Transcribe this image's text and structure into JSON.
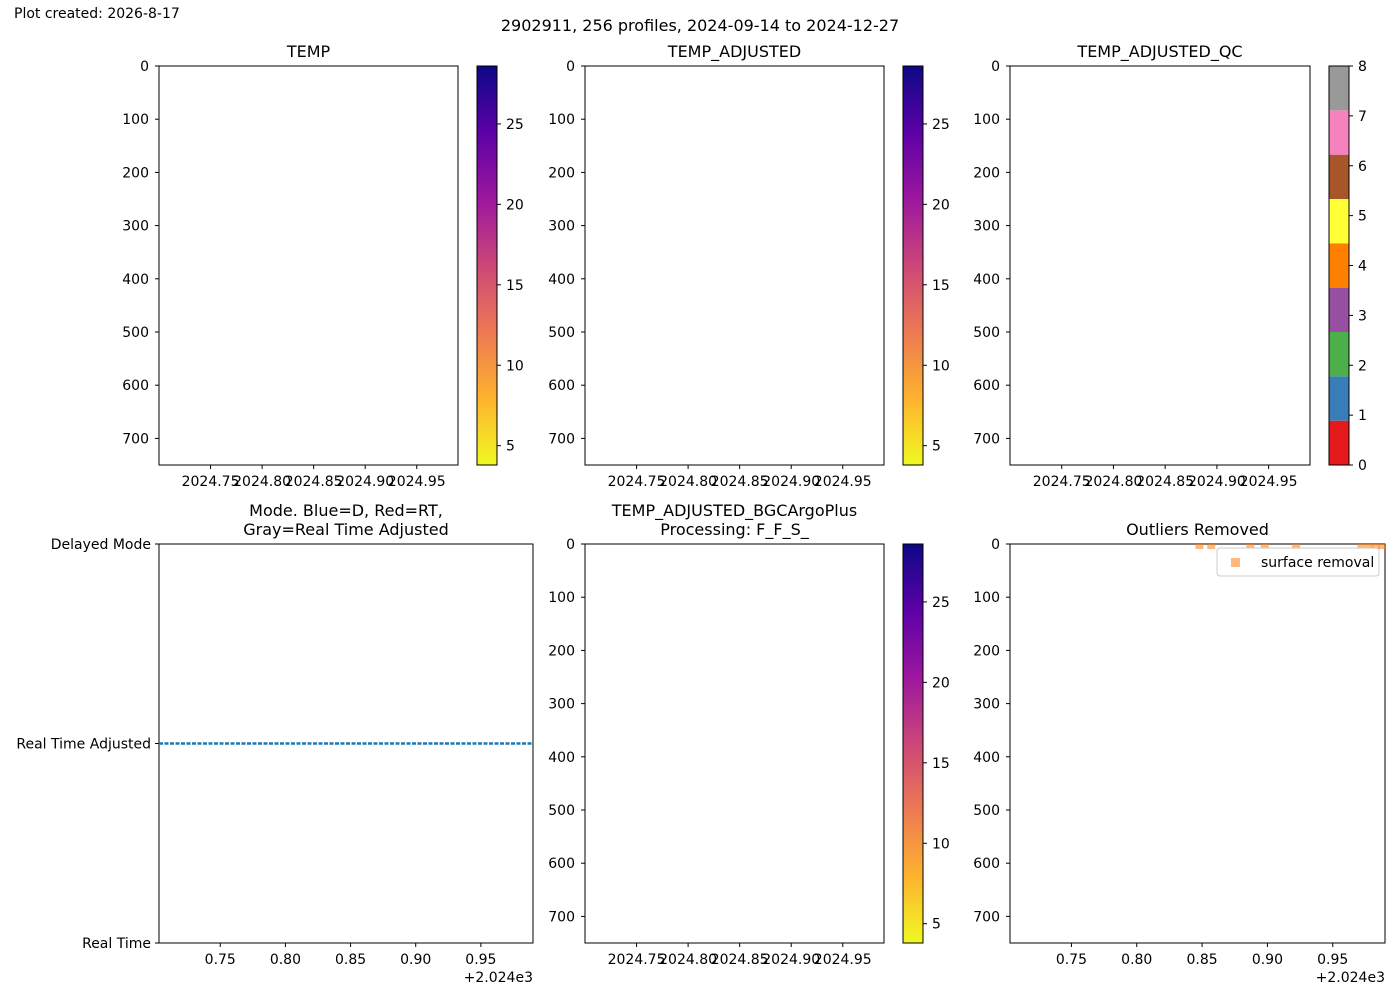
{
  "created_text": "Plot created: 2026-8-17",
  "suptitle": "2902911, 256 profiles, 2024-09-14 to 2024-12-27",
  "colormaps": {
    "temp_stops": [
      "#f0f921",
      "#fdb32f",
      "#ed7953",
      "#cc4778",
      "#9c179e",
      "#5c01a6",
      "#0d0887"
    ],
    "temp_ticks": [
      5,
      10,
      15,
      20,
      25
    ],
    "temp_range": [
      3.8,
      28.6
    ],
    "qc_colors": [
      "#e41a1c",
      "#377eb8",
      "#4daf4a",
      "#984ea3",
      "#ff7f00",
      "#ffff33",
      "#a65628",
      "#f781bf",
      "#999999"
    ],
    "qc_ticks": [
      0,
      1,
      2,
      3,
      4,
      5,
      6,
      7,
      8
    ]
  },
  "chart_data": [
    {
      "id": "temp",
      "type": "heatmap",
      "title": "TEMP",
      "xlim": [
        2024.7,
        2024.99
      ],
      "ylim": [
        750,
        0
      ],
      "xticks": [
        "2024.75",
        "2024.80",
        "2024.85",
        "2024.90",
        "2024.95"
      ],
      "yticks": [
        "0",
        "100",
        "200",
        "300",
        "400",
        "500",
        "600",
        "700"
      ],
      "colorbar": "temp"
    },
    {
      "id": "temp_adjusted",
      "type": "heatmap",
      "title": "TEMP_ADJUSTED",
      "xlim": [
        2024.7,
        2024.99
      ],
      "ylim": [
        750,
        0
      ],
      "xticks": [
        "2024.75",
        "2024.80",
        "2024.85",
        "2024.90",
        "2024.95"
      ],
      "yticks": [
        "0",
        "100",
        "200",
        "300",
        "400",
        "500",
        "600",
        "700"
      ],
      "colorbar": "temp"
    },
    {
      "id": "temp_adjusted_qc",
      "type": "heatmap",
      "title": "TEMP_ADJUSTED_QC",
      "xlim": [
        2024.7,
        2024.99
      ],
      "ylim": [
        750,
        0
      ],
      "xticks": [
        "2024.75",
        "2024.80",
        "2024.85",
        "2024.90",
        "2024.95"
      ],
      "yticks": [
        "0",
        "100",
        "200",
        "300",
        "400",
        "500",
        "600",
        "700"
      ],
      "colorbar": "qc"
    },
    {
      "id": "mode",
      "type": "line",
      "title": "Mode. Blue=D, Red=RT,\nGray=Real Time Adjusted",
      "xlim": [
        0.703,
        0.99
      ],
      "xticks": [
        "0.75",
        "0.80",
        "0.85",
        "0.90",
        "0.95"
      ],
      "x_offset_label": "+2.024e3",
      "ylim": [
        0,
        2
      ],
      "yticks": [
        "Real Time",
        "Real Time Adjusted",
        "Delayed Mode"
      ],
      "series": [
        {
          "color": "#1f77b4",
          "style": "dashed",
          "x": [
            0.703,
            0.99
          ],
          "y": [
            1,
            1
          ]
        }
      ]
    },
    {
      "id": "temp_adjusted_bgc",
      "type": "heatmap",
      "title": "TEMP_ADJUSTED_BGCArgoPlus\nProcessing: F_F_S_",
      "xlim": [
        2024.7,
        2024.99
      ],
      "ylim": [
        750,
        0
      ],
      "xticks": [
        "2024.75",
        "2024.80",
        "2024.85",
        "2024.90",
        "2024.95"
      ],
      "yticks": [
        "0",
        "100",
        "200",
        "300",
        "400",
        "500",
        "600",
        "700"
      ],
      "colorbar": "temp"
    },
    {
      "id": "outliers",
      "type": "scatter",
      "title": "Outliers Removed",
      "xlim": [
        0.703,
        0.99
      ],
      "xticks": [
        "0.75",
        "0.80",
        "0.85",
        "0.90",
        "0.95"
      ],
      "x_offset_label": "+2.024e3",
      "ylim": [
        750,
        0
      ],
      "yticks": [
        "0",
        "100",
        "200",
        "300",
        "400",
        "500",
        "600",
        "700"
      ],
      "legend": {
        "label": "surface removal",
        "location": "upper right"
      },
      "series": [
        {
          "name": "surface removal",
          "color": "#ff7f0e",
          "points": [
            {
              "x": 0.848,
              "y": 2
            },
            {
              "x": 0.857,
              "y": 2
            },
            {
              "x": 0.887,
              "y": 2
            },
            {
              "x": 0.898,
              "y": 2
            },
            {
              "x": 0.922,
              "y": 2
            },
            {
              "x": 0.972,
              "y": 2
            },
            {
              "x": 0.978,
              "y": 2
            },
            {
              "x": 0.983,
              "y": 2
            },
            {
              "x": 0.988,
              "y": 2
            }
          ]
        }
      ]
    }
  ]
}
